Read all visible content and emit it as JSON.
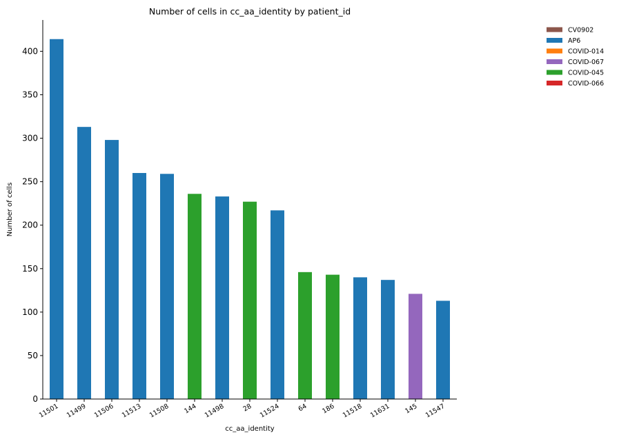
{
  "chart_data": {
    "type": "bar",
    "title": "Number of cells in cc_aa_identity by patient_id",
    "xlabel": "cc_aa_identity",
    "ylabel": "Number of cells",
    "ylim": [
      0,
      436
    ],
    "yticks": [
      0,
      50,
      100,
      150,
      200,
      250,
      300,
      350,
      400
    ],
    "grid": false,
    "legend_position": "top-right",
    "legend": [
      {
        "name": "CV0902",
        "color": "#8c564b"
      },
      {
        "name": "AP6",
        "color": "#1f77b4"
      },
      {
        "name": "COVID-014",
        "color": "#ff7f0e"
      },
      {
        "name": "COVID-067",
        "color": "#9467bd"
      },
      {
        "name": "COVID-045",
        "color": "#2ca02c"
      },
      {
        "name": "COVID-066",
        "color": "#d62728"
      }
    ],
    "categories": [
      "11501",
      "11499",
      "11506",
      "11513",
      "11508",
      "144",
      "11498",
      "28",
      "11524",
      "64",
      "186",
      "11518",
      "11631",
      "145",
      "11547"
    ],
    "values": [
      414,
      313,
      298,
      260,
      259,
      236,
      233,
      227,
      217,
      146,
      143,
      140,
      137,
      121,
      113
    ],
    "bar_groups": [
      "AP6",
      "AP6",
      "AP6",
      "AP6",
      "AP6",
      "COVID-045",
      "AP6",
      "COVID-045",
      "AP6",
      "COVID-045",
      "COVID-045",
      "AP6",
      "AP6",
      "COVID-067",
      "AP6"
    ]
  }
}
